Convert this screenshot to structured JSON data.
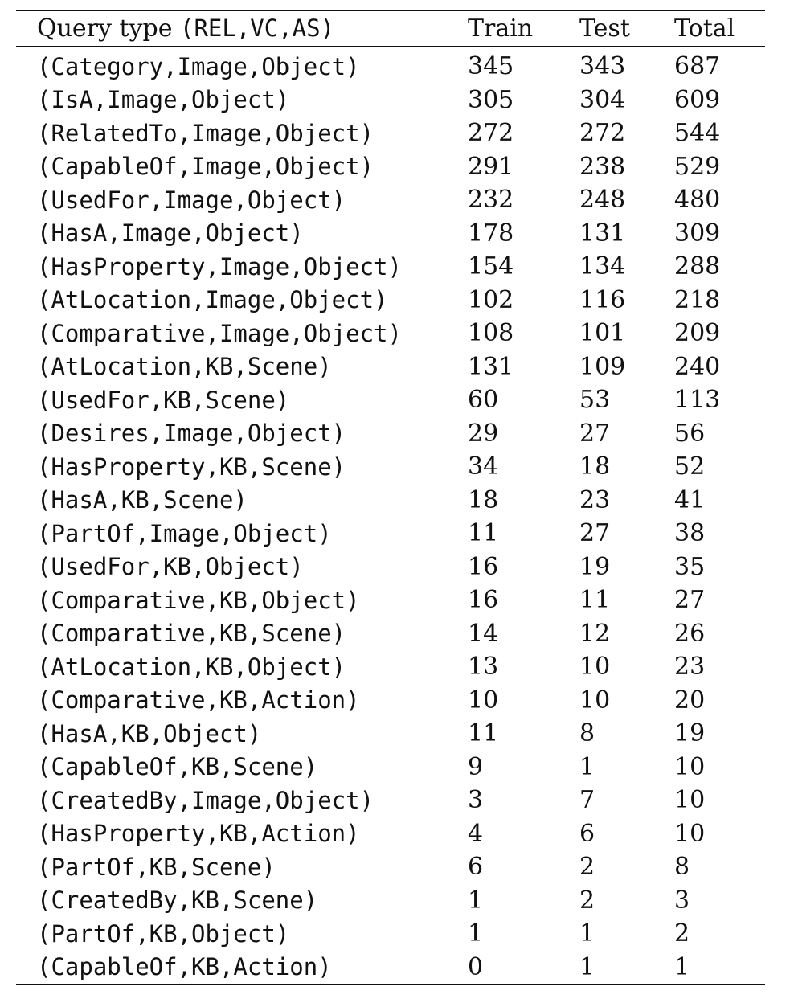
{
  "table": {
    "header": {
      "query_prefix": "Query type ",
      "query_suffix": "(REL,VC,AS)",
      "train": "Train",
      "test": "Test",
      "total": "Total"
    },
    "rows": [
      {
        "query": "(Category,Image,Object)",
        "train": "345",
        "test": "343",
        "total": "687"
      },
      {
        "query": "(IsA,Image,Object)",
        "train": "305",
        "test": "304",
        "total": "609"
      },
      {
        "query": "(RelatedTo,Image,Object)",
        "train": "272",
        "test": "272",
        "total": "544"
      },
      {
        "query": "(CapableOf,Image,Object)",
        "train": "291",
        "test": "238",
        "total": "529"
      },
      {
        "query": "(UsedFor,Image,Object)",
        "train": "232",
        "test": "248",
        "total": "480"
      },
      {
        "query": "(HasA,Image,Object)",
        "train": "178",
        "test": "131",
        "total": "309"
      },
      {
        "query": "(HasProperty,Image,Object)",
        "train": "154",
        "test": "134",
        "total": "288"
      },
      {
        "query": "(AtLocation,Image,Object)",
        "train": "102",
        "test": "116",
        "total": "218"
      },
      {
        "query": "(Comparative,Image,Object)",
        "train": "108",
        "test": "101",
        "total": "209"
      },
      {
        "query": "(AtLocation,KB,Scene)",
        "train": "131",
        "test": "109",
        "total": "240"
      },
      {
        "query": "(UsedFor,KB,Scene)",
        "train": "60",
        "test": "53",
        "total": "113"
      },
      {
        "query": "(Desires,Image,Object)",
        "train": "29",
        "test": "27",
        "total": "56"
      },
      {
        "query": "(HasProperty,KB,Scene)",
        "train": "34",
        "test": "18",
        "total": "52"
      },
      {
        "query": "(HasA,KB,Scene)",
        "train": "18",
        "test": "23",
        "total": "41"
      },
      {
        "query": "(PartOf,Image,Object)",
        "train": "11",
        "test": "27",
        "total": "38"
      },
      {
        "query": "(UsedFor,KB,Object)",
        "train": "16",
        "test": "19",
        "total": "35"
      },
      {
        "query": "(Comparative,KB,Object)",
        "train": "16",
        "test": "11",
        "total": "27"
      },
      {
        "query": "(Comparative,KB,Scene)",
        "train": "14",
        "test": "12",
        "total": "26"
      },
      {
        "query": "(AtLocation,KB,Object)",
        "train": "13",
        "test": "10",
        "total": "23"
      },
      {
        "query": "(Comparative,KB,Action)",
        "train": "10",
        "test": "10",
        "total": "20"
      },
      {
        "query": "(HasA,KB,Object)",
        "train": "11",
        "test": "8",
        "total": "19"
      },
      {
        "query": "(CapableOf,KB,Scene)",
        "train": "9",
        "test": "1",
        "total": "10"
      },
      {
        "query": "(CreatedBy,Image,Object)",
        "train": "3",
        "test": "7",
        "total": "10"
      },
      {
        "query": "(HasProperty,KB,Action)",
        "train": "4",
        "test": "6",
        "total": "10"
      },
      {
        "query": "(PartOf,KB,Scene)",
        "train": "6",
        "test": "2",
        "total": "8"
      },
      {
        "query": "(CreatedBy,KB,Scene)",
        "train": "1",
        "test": "2",
        "total": "3"
      },
      {
        "query": "(PartOf,KB,Object)",
        "train": "1",
        "test": "1",
        "total": "2"
      },
      {
        "query": "(CapableOf,KB,Action)",
        "train": "0",
        "test": "1",
        "total": "1"
      }
    ]
  }
}
